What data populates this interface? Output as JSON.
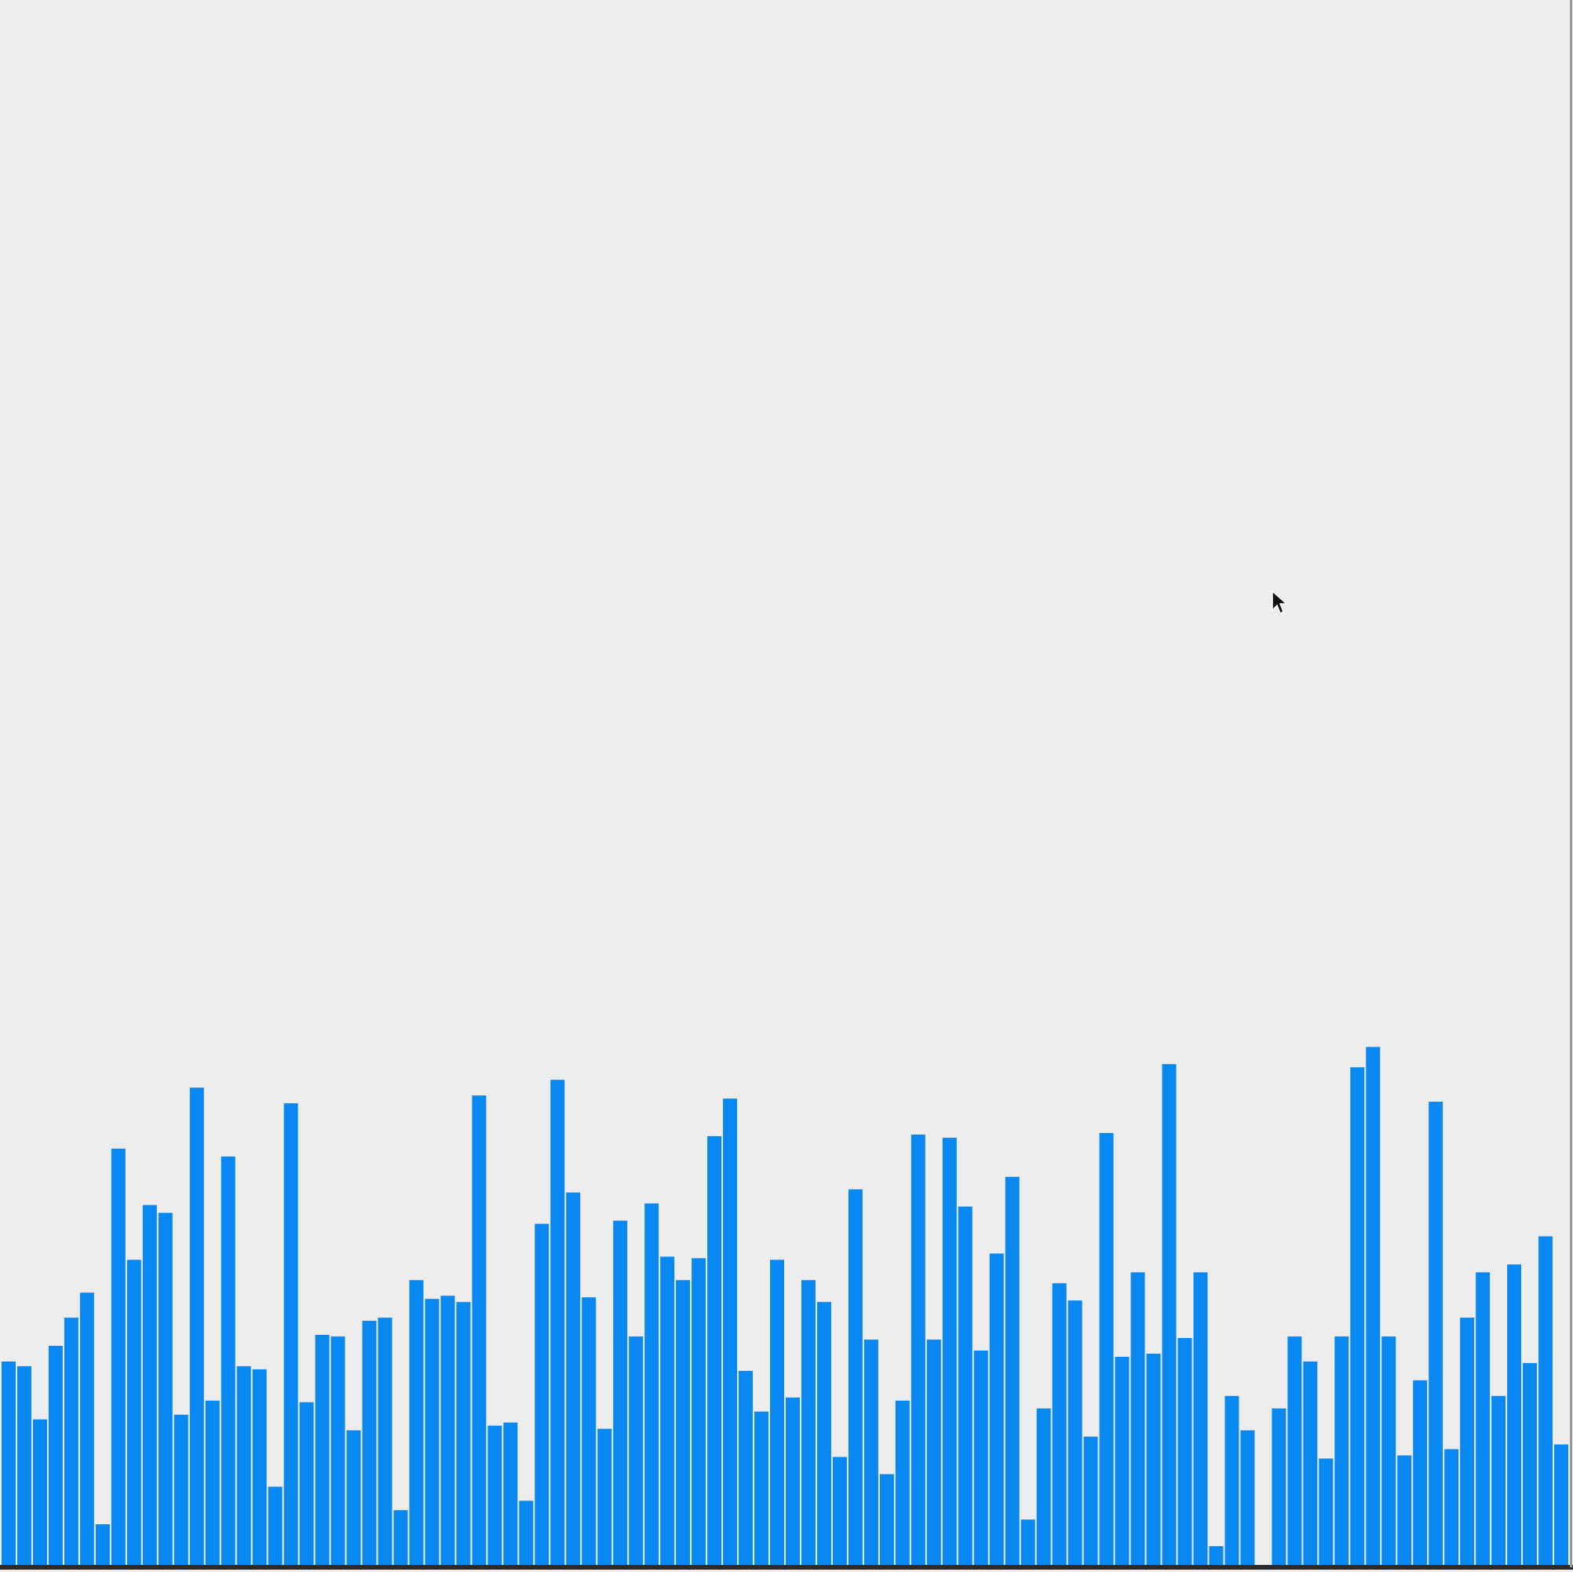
{
  "chart_data": {
    "type": "bar",
    "title": "",
    "xlabel": "",
    "ylabel": "",
    "ylim": [
      0,
      100
    ],
    "grid": false,
    "bar_color": "#0a88f2",
    "values": [
      13,
      12.7,
      9.3,
      14,
      15.8,
      17.4,
      2.6,
      26.6,
      19.5,
      23,
      22.5,
      9.6,
      30.5,
      10.5,
      26.1,
      12.7,
      12.5,
      5,
      29.5,
      10.4,
      14.7,
      14.6,
      8.6,
      15.6,
      15.8,
      3.5,
      18.2,
      17,
      17.2,
      16.8,
      30,
      8.9,
      9.1,
      4.1,
      21.8,
      31,
      23.8,
      17.1,
      8.7,
      22,
      14.6,
      23.1,
      19.7,
      18.2,
      19.6,
      27.4,
      29.8,
      12.4,
      9.8,
      19.5,
      10.7,
      18.2,
      16.8,
      6.9,
      24,
      14.4,
      5.8,
      10.5,
      27.5,
      14.4,
      27.3,
      22.9,
      13.7,
      19.9,
      24.8,
      2.9,
      10,
      18,
      16.9,
      8.2,
      27.6,
      13.3,
      18.7,
      13.5,
      32,
      14.5,
      18.7,
      1.2,
      10.8,
      8.6,
      0,
      10,
      14.6,
      13,
      6.8,
      14.6,
      31.8,
      33.1,
      14.6,
      7,
      11.8,
      29.6,
      7.4,
      15.8,
      18.7,
      10.8,
      19.2,
      12.9,
      21,
      7.7
    ]
  }
}
